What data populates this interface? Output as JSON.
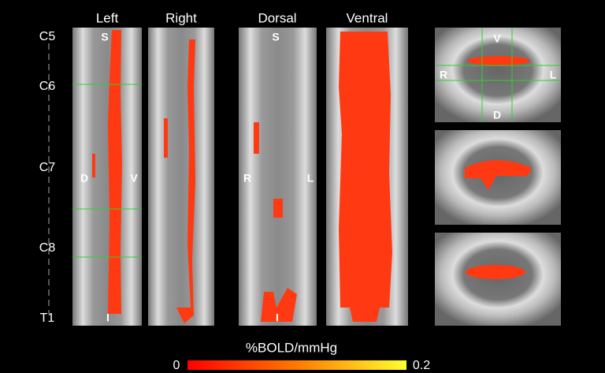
{
  "panels": [
    {
      "title": "Left",
      "orientation": {
        "top": "S",
        "bottom": "I",
        "left": "D",
        "right": "V"
      }
    },
    {
      "title": "Right"
    },
    {
      "title": "Dorsal",
      "orientation": {
        "top": "S",
        "bottom": "I",
        "left": "R",
        "right": "L"
      }
    },
    {
      "title": "Ventral"
    }
  ],
  "levels": [
    "C5",
    "C6",
    "C7",
    "C8",
    "T1"
  ],
  "axial": {
    "top": "V",
    "bottom": "D",
    "left": "R",
    "right": "L"
  },
  "colorbar": {
    "label": "%BOLD/mmHg",
    "min": 0,
    "max": 0.2
  }
}
